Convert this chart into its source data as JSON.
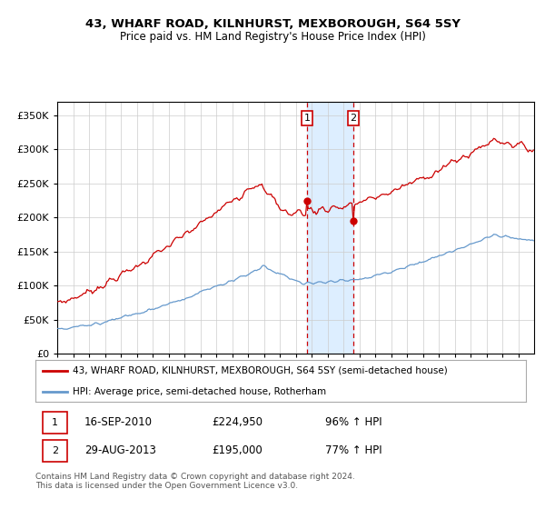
{
  "title1": "43, WHARF ROAD, KILNHURST, MEXBOROUGH, S64 5SY",
  "title2": "Price paid vs. HM Land Registry's House Price Index (HPI)",
  "legend1": "43, WHARF ROAD, KILNHURST, MEXBOROUGH, S64 5SY (semi-detached house)",
  "legend2": "HPI: Average price, semi-detached house, Rotherham",
  "footer": "Contains HM Land Registry data © Crown copyright and database right 2024.\nThis data is licensed under the Open Government Licence v3.0.",
  "transaction1_date": "16-SEP-2010",
  "transaction1_price": 224950,
  "transaction1_hpi": "96%",
  "transaction2_date": "29-AUG-2013",
  "transaction2_price": 195000,
  "transaction2_hpi": "77%",
  "red_color": "#cc0000",
  "blue_color": "#6699cc",
  "background_color": "#ffffff",
  "grid_color": "#cccccc",
  "highlight_color": "#ddeeff",
  "ylim": [
    0,
    370000
  ],
  "yticks": [
    0,
    50000,
    100000,
    150000,
    200000,
    250000,
    300000,
    350000
  ],
  "xlim_start": 1995,
  "xlim_end": 2025
}
